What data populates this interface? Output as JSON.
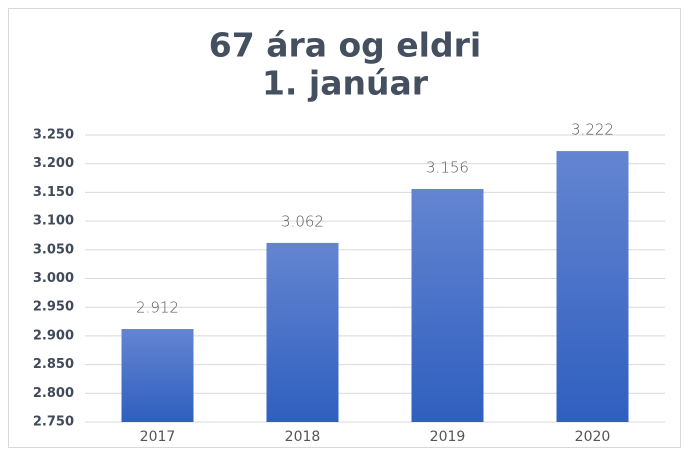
{
  "chart_data": {
    "type": "bar",
    "title": [
      "67 ára og eldri",
      "1. janúar"
    ],
    "categories": [
      "2017",
      "2018",
      "2019",
      "2020"
    ],
    "values": [
      2912,
      3062,
      3156,
      3222
    ],
    "value_labels": [
      "2.912",
      "3.062",
      "3.156",
      "3.222"
    ],
    "color": [
      "#6485d1",
      "#2f5fbf"
    ],
    "ylim": [
      2750,
      3250
    ],
    "yticks": [
      {
        "value": 2750,
        "label": "2.750"
      },
      {
        "value": 2800,
        "label": "2.800"
      },
      {
        "value": 2850,
        "label": "2.850"
      },
      {
        "value": 2900,
        "label": "2.900"
      },
      {
        "value": 2950,
        "label": "2.950"
      },
      {
        "value": 3000,
        "label": "3.000"
      },
      {
        "value": 3050,
        "label": "3.050"
      },
      {
        "value": 3100,
        "label": "3.100"
      },
      {
        "value": 3150,
        "label": "3.150"
      },
      {
        "value": 3200,
        "label": "3.200"
      },
      {
        "value": 3250,
        "label": "3.250"
      }
    ],
    "grid": true
  }
}
